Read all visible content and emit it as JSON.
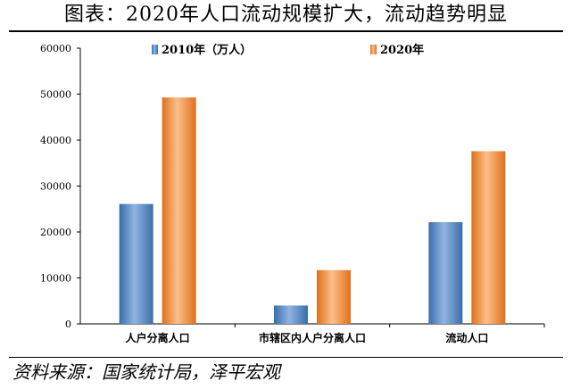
{
  "title": "图表：2020年人口流动规模扩大，流动趋势明显",
  "source": "资料来源：国家统计局，泽平宏观",
  "chart_data": {
    "type": "bar",
    "categories": [
      "人户分离人口",
      "市辖区内人户分离人口",
      "流动人口"
    ],
    "series": [
      {
        "name": "2010年（万人）",
        "values": [
          26094,
          3991,
          22143
        ]
      },
      {
        "name": "2020年",
        "values": [
          49276,
          11694,
          37582
        ]
      }
    ],
    "ylim": [
      0,
      60000
    ],
    "yticks": [
      "0",
      "10000",
      "20000",
      "30000",
      "40000",
      "50000",
      "60000"
    ],
    "legend": "top",
    "grid": false,
    "colors": {
      "2010": "#4f81bd",
      "2020": "#f79646"
    }
  }
}
